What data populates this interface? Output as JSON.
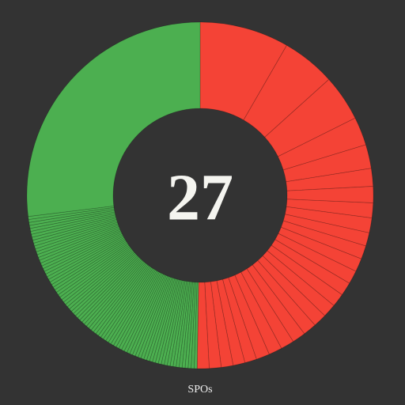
{
  "chart_data": {
    "type": "donut",
    "center_text": "27",
    "label": "SPOs",
    "groups": [
      {
        "color": "#f44336",
        "values": [
          30,
          18,
          15.5,
          9.5,
          8,
          6,
          5.5,
          5,
          5,
          4.5,
          4.5,
          4.5,
          4.5,
          4.5,
          4.5,
          4.5,
          4.5,
          4.5,
          4.5,
          4.5,
          4.5,
          4.5,
          4,
          4,
          4,
          4,
          4
        ]
      },
      {
        "color": "#4caf50",
        "values": [
          1,
          1,
          1,
          1,
          1,
          1,
          1,
          1,
          1,
          1,
          1,
          1,
          1,
          1,
          1,
          1,
          1,
          1,
          1,
          1,
          1,
          1,
          1,
          1,
          1,
          1,
          1,
          1,
          1,
          1,
          1,
          1,
          1,
          1,
          1,
          1,
          1,
          1,
          1,
          1,
          1,
          1,
          1,
          1,
          1,
          1,
          1,
          1,
          1,
          1,
          1,
          1,
          1,
          1,
          1,
          1,
          1,
          1,
          1,
          1,
          1,
          1,
          1,
          1,
          1,
          1,
          1,
          1,
          1,
          1,
          1,
          1,
          1,
          1,
          1,
          1,
          1,
          1,
          1,
          1,
          1,
          1,
          97
        ]
      }
    ]
  }
}
